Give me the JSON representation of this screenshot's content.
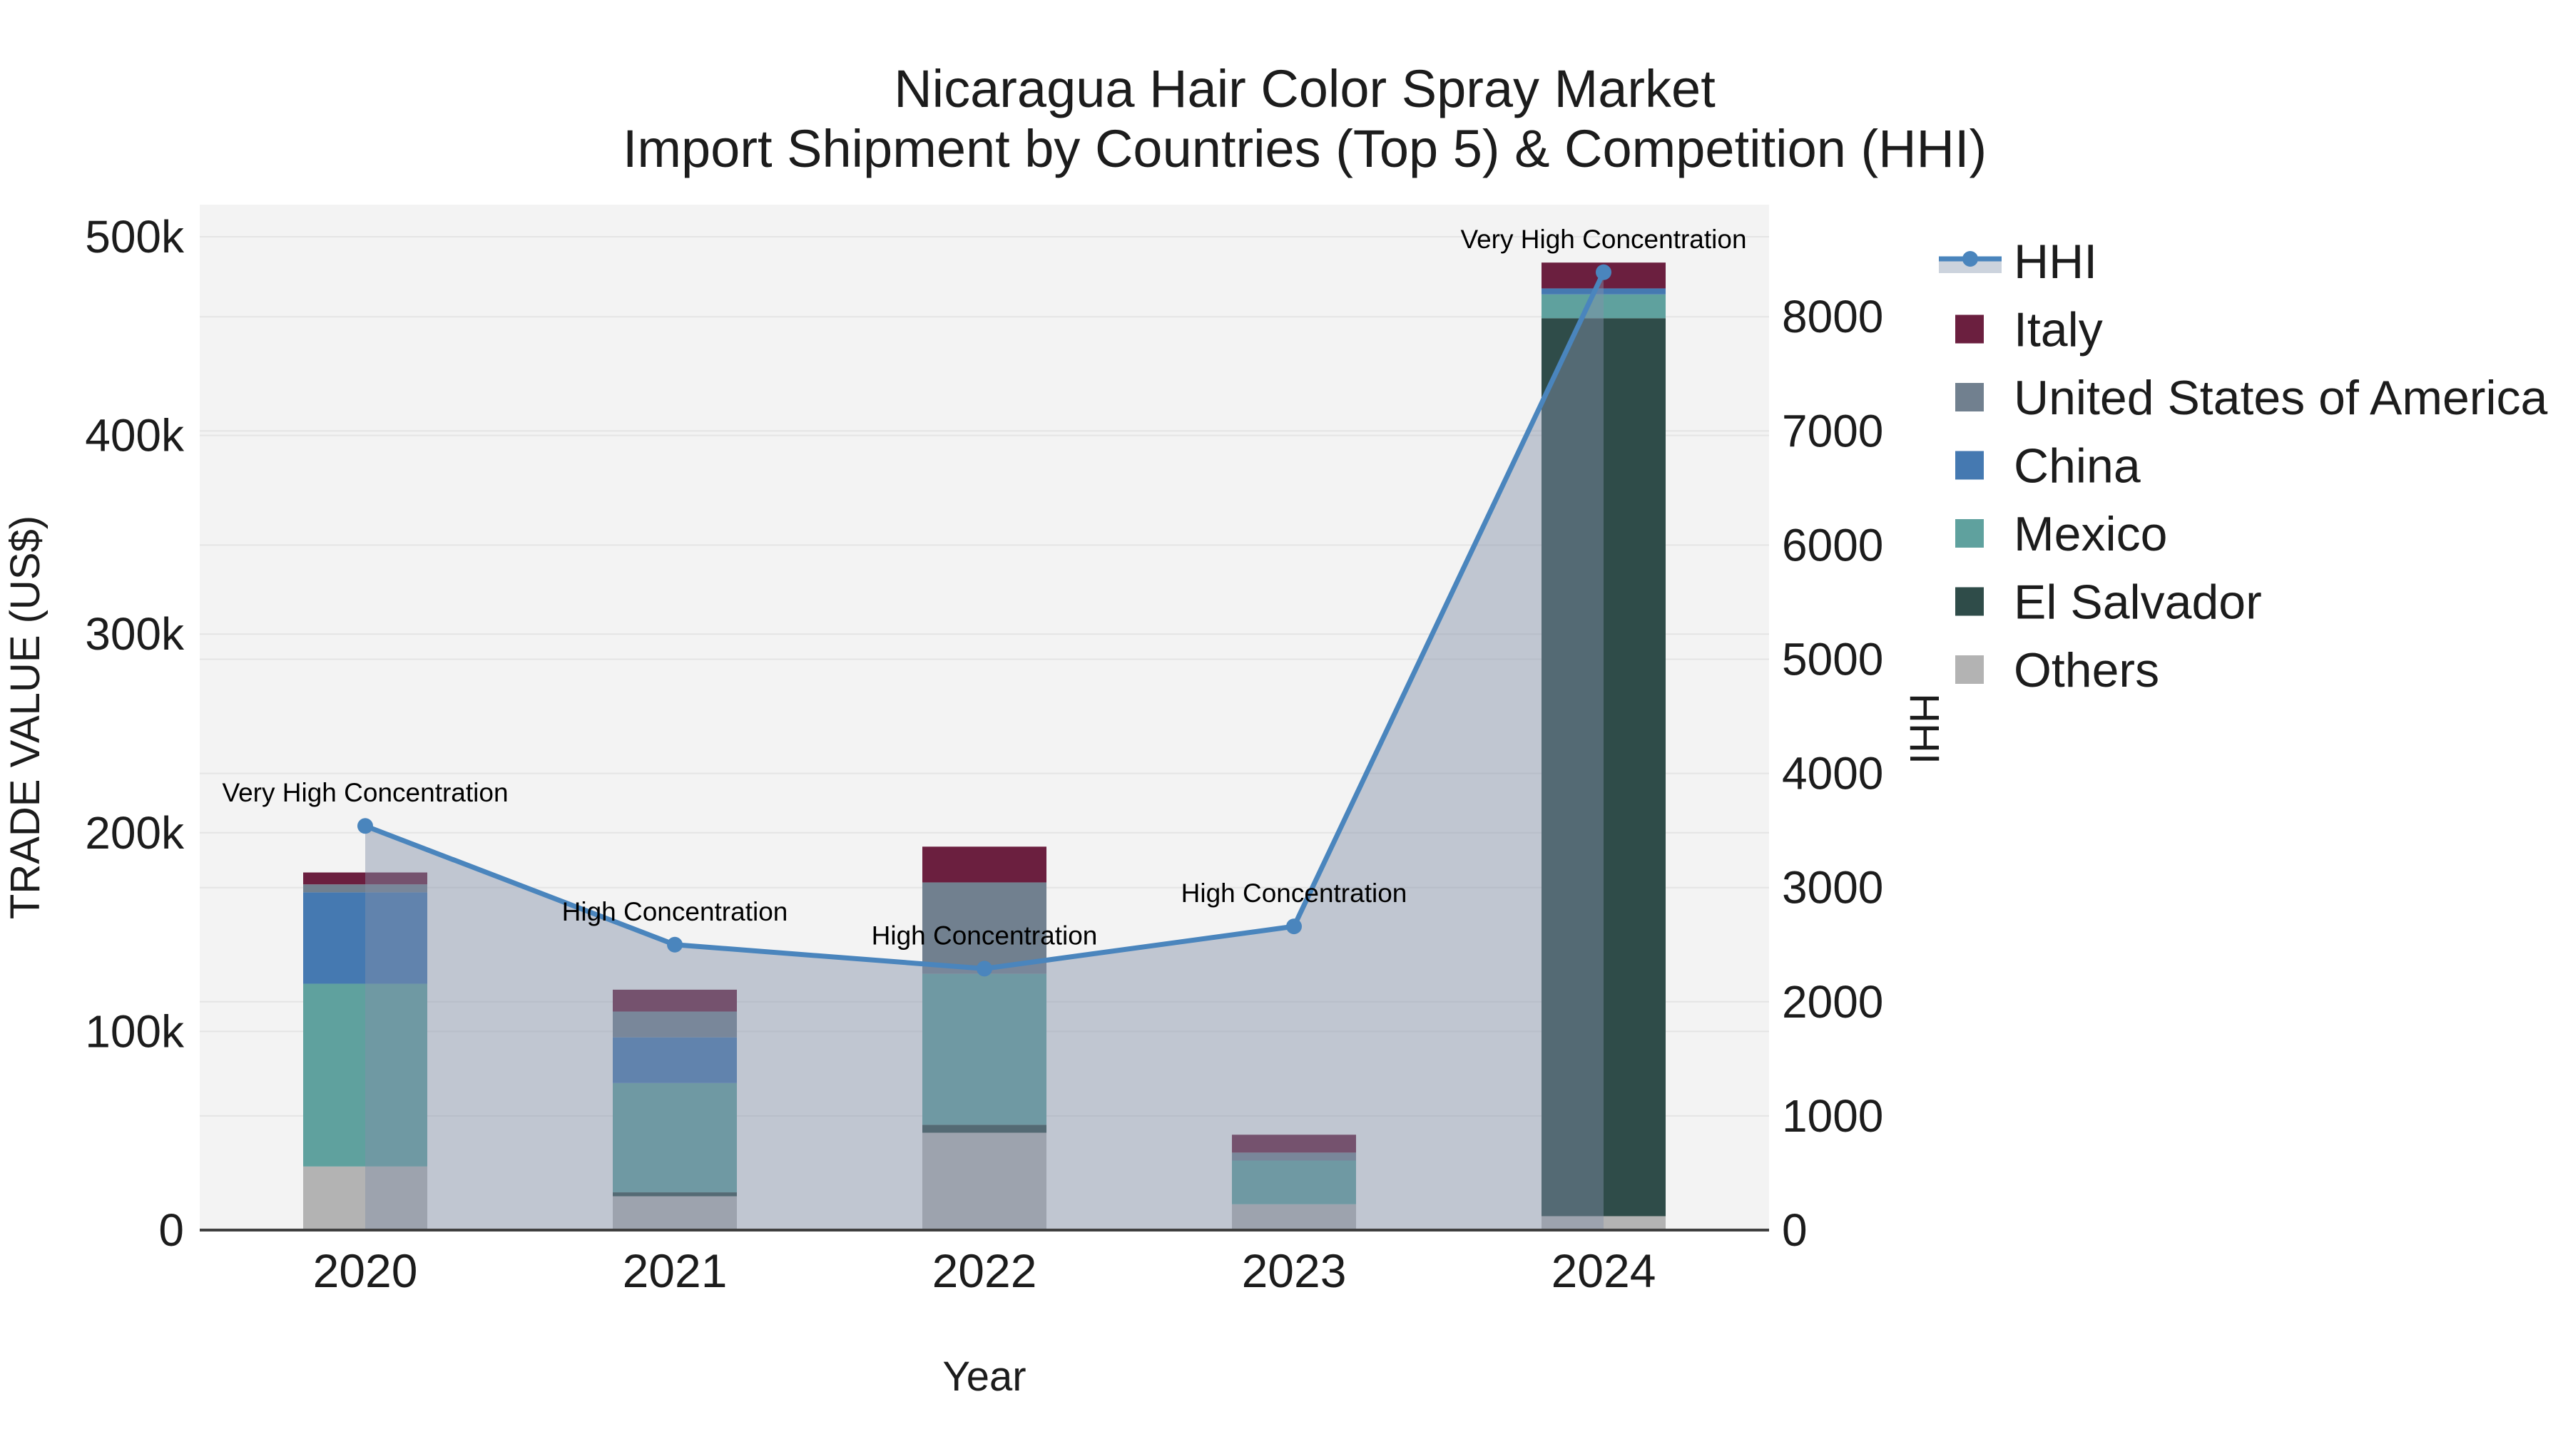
{
  "title": {
    "line1": "Nicaragua Hair Color Spray Market",
    "line2": "Import Shipment by Countries (Top 5) & Competition (HHI)"
  },
  "colors": {
    "figure_bg": "#ffffff",
    "plot_bg": "#f3f3f3",
    "gridline": "#e4e4e4",
    "axis_line": "#404040",
    "tick_text": "#1c1c1c",
    "title_text": "#1c1c1c",
    "annotation_text": "#000000",
    "hhi_line": "#4a85bd",
    "hhi_area": "rgba(130,145,168,0.45)",
    "legend_band": "#ccd3dd"
  },
  "legend": {
    "items": [
      {
        "label": "HHI",
        "type": "line",
        "color": "#4a85bd"
      },
      {
        "label": "Italy",
        "type": "swatch",
        "color": "#6b1f3f"
      },
      {
        "label": "United States of America",
        "type": "swatch",
        "color": "#71808f"
      },
      {
        "label": "China",
        "type": "swatch",
        "color": "#4579b1"
      },
      {
        "label": "Mexico",
        "type": "swatch",
        "color": "#5fa19e"
      },
      {
        "label": "El Salvador",
        "type": "swatch",
        "color": "#2f4c49"
      },
      {
        "label": "Others",
        "type": "swatch",
        "color": "#b3b3b3"
      }
    ]
  },
  "chart_data": {
    "type": "bar",
    "subtype": "stacked-bar-with-line",
    "categories": [
      "2020",
      "2021",
      "2022",
      "2023",
      "2024"
    ],
    "xlabel": "Year",
    "ylabel_left": "TRADE VALUE (US$)",
    "ylabel_right": "HHI",
    "ylim_left": [
      0,
      519000
    ],
    "ylim_right": [
      0,
      8990
    ],
    "y_left_ticks": {
      "labels": [
        "0",
        "100k",
        "200k",
        "300k",
        "400k",
        "500k"
      ],
      "values": [
        0,
        100000,
        200000,
        300000,
        400000,
        500000
      ]
    },
    "y_right_ticks": {
      "labels": [
        "0",
        "1000",
        "2000",
        "3000",
        "4000",
        "5000",
        "6000",
        "7000",
        "8000"
      ],
      "values": [
        0,
        1000,
        2000,
        3000,
        4000,
        5000,
        6000,
        7000,
        8000
      ]
    },
    "series": [
      {
        "name": "Others",
        "color": "#b3b3b3",
        "values": [
          32000,
          17000,
          49000,
          13000,
          7000
        ]
      },
      {
        "name": "El Salvador",
        "color": "#2f4c49",
        "values": [
          0,
          2000,
          4000,
          0,
          452000
        ]
      },
      {
        "name": "Mexico",
        "color": "#5fa19e",
        "values": [
          92000,
          55000,
          76000,
          22000,
          12000
        ]
      },
      {
        "name": "China",
        "color": "#4579b1",
        "values": [
          46000,
          23000,
          0,
          0,
          3000
        ]
      },
      {
        "name": "United States of America",
        "color": "#71808f",
        "values": [
          4000,
          13000,
          46000,
          4000,
          0
        ]
      },
      {
        "name": "Italy",
        "color": "#6b1f3f",
        "values": [
          6000,
          11000,
          18000,
          9000,
          13000
        ]
      }
    ],
    "line_series": {
      "name": "HHI",
      "color": "#4a85bd",
      "area_color": "rgba(130,145,168,0.45)",
      "values": [
        3540,
        2500,
        2290,
        2660,
        8390
      ]
    },
    "annotations": [
      {
        "year": "2020",
        "text": "Very High Concentration"
      },
      {
        "year": "2021",
        "text": "High Concentration"
      },
      {
        "year": "2022",
        "text": "High Concentration"
      },
      {
        "year": "2023",
        "text": "High Concentration"
      },
      {
        "year": "2024",
        "text": "Very High Concentration"
      }
    ],
    "legend_position": "right",
    "grid": true
  }
}
